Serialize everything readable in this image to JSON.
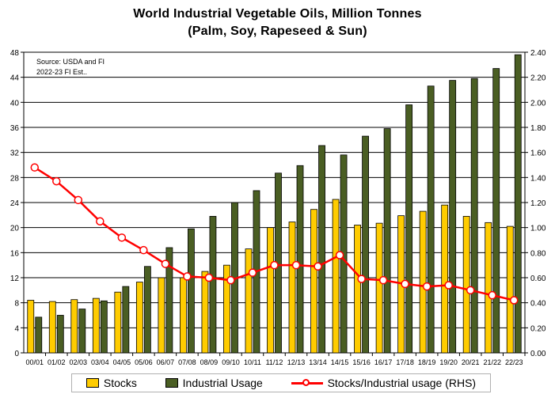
{
  "chart_data": {
    "type": "bar",
    "title": "World Industrial Vegetable Oils, Million Tonnes",
    "subtitle": "(Palm, Soy, Rapeseed & Sun)",
    "annotation": [
      "Source: USDA and FI",
      "2022-23 FI Est.."
    ],
    "categories": [
      "00/01",
      "01/02",
      "02/03",
      "03/04",
      "04/05",
      "05/06",
      "06/07",
      "07/08",
      "08/09",
      "09/10",
      "10/11",
      "11/12",
      "12/13",
      "13/14",
      "14/15",
      "15/16",
      "16/17",
      "17/18",
      "18/19",
      "19/20",
      "20/21",
      "21/22",
      "22/23"
    ],
    "series": [
      {
        "name": "Stocks",
        "axis": "left",
        "color": "#FFCC00",
        "values": [
          8.4,
          8.2,
          8.5,
          8.7,
          9.7,
          11.3,
          12.0,
          12.0,
          13.0,
          14.0,
          16.6,
          20.0,
          20.9,
          22.9,
          24.5,
          20.4,
          20.7,
          21.9,
          22.6,
          23.6,
          21.8,
          20.8,
          20.2
        ]
      },
      {
        "name": "Industrial Usage",
        "axis": "left",
        "color": "#4A5E23",
        "values": [
          5.7,
          6.0,
          7.0,
          8.3,
          10.6,
          13.8,
          16.8,
          19.8,
          21.8,
          24.0,
          25.9,
          28.7,
          29.9,
          33.1,
          31.6,
          34.6,
          35.8,
          39.6,
          42.6,
          43.5,
          43.8,
          45.4,
          47.6
        ]
      },
      {
        "name": "Stocks/Industrial usage (RHS)",
        "axis": "right",
        "type": "line",
        "color": "#FF0000",
        "values": [
          1.48,
          1.37,
          1.22,
          1.05,
          0.92,
          0.82,
          0.71,
          0.61,
          0.6,
          0.58,
          0.64,
          0.7,
          0.7,
          0.69,
          0.78,
          0.59,
          0.58,
          0.55,
          0.53,
          0.54,
          0.5,
          0.46,
          0.42
        ]
      }
    ],
    "y_left": {
      "min": 0,
      "max": 48,
      "step": 4
    },
    "y_right": {
      "min": 0,
      "max": 2.4,
      "step": 0.2,
      "format_decimals": 2
    },
    "grid": true,
    "legend": "bottom"
  }
}
